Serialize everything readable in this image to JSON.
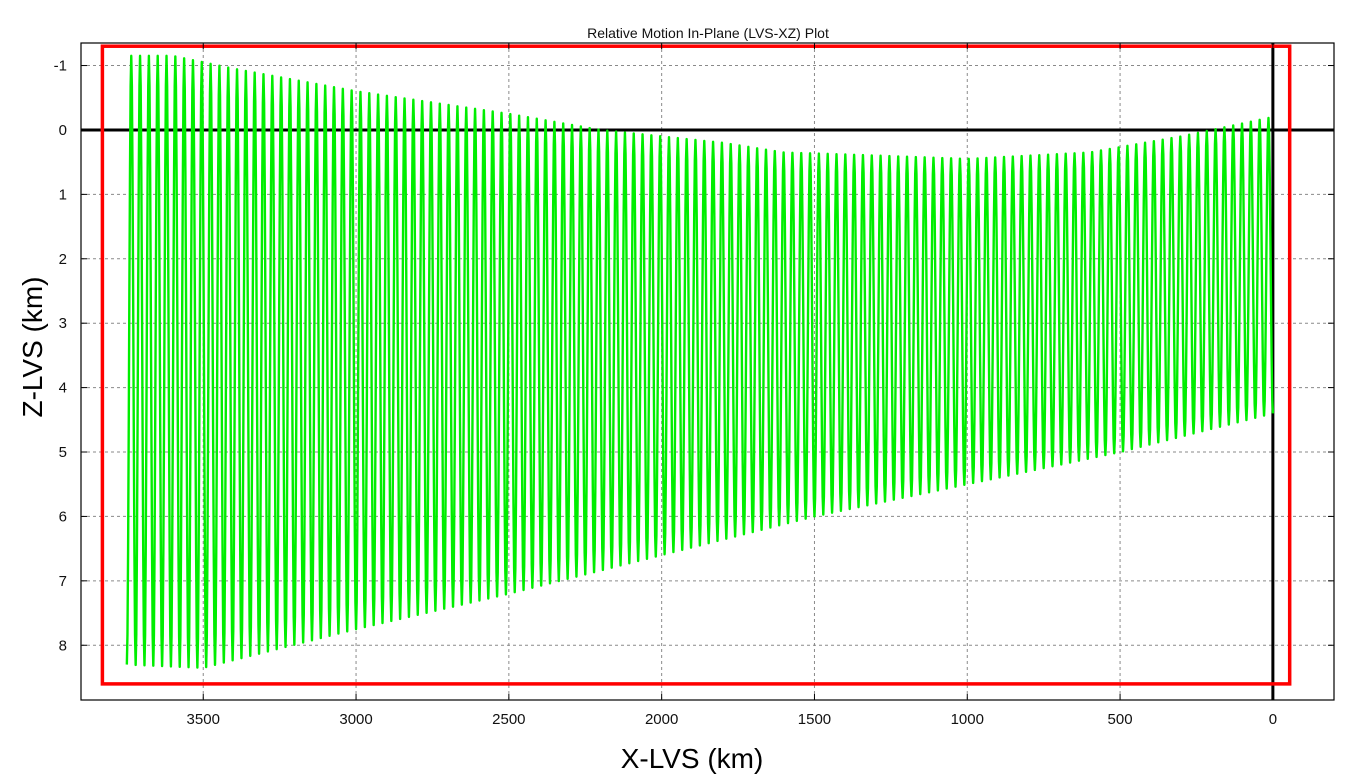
{
  "chart_data": {
    "type": "line",
    "title": "Relative Motion In-Plane (LVS-XZ) Plot",
    "xlabel": "X-LVS (km)",
    "ylabel": "Z-LVS (km)",
    "xlim": [
      3900,
      -200
    ],
    "ylim": [
      -1.35,
      8.85
    ],
    "x_reversed": true,
    "y_reversed": true,
    "grid": true,
    "xticks": [
      3500,
      3000,
      2500,
      2000,
      1500,
      1000,
      500,
      0
    ],
    "yticks": [
      -1,
      0,
      1,
      2,
      3,
      4,
      5,
      6,
      7,
      8
    ],
    "reference_lines": [
      {
        "axis": "y",
        "value": 0,
        "color": "#000000"
      },
      {
        "axis": "x",
        "value": 0,
        "color": "#000000"
      }
    ],
    "highlight_box": {
      "x": [
        3830,
        -55
      ],
      "z": [
        -1.3,
        8.6
      ],
      "color": "#ff0000"
    },
    "series": [
      {
        "color": "#00ee00",
        "oscillation_count": 130,
        "x_start": 3750,
        "x_end": 0,
        "upper_envelope": {
          "x": [
            3750,
            3600,
            3400,
            3000,
            2500,
            2200,
            2000,
            1800,
            1600,
            1400,
            1000,
            600,
            300,
            100,
            0
          ],
          "z": [
            -1.15,
            -1.15,
            -0.95,
            -0.6,
            -0.25,
            0.0,
            0.1,
            0.2,
            0.35,
            0.38,
            0.45,
            0.35,
            0.1,
            -0.1,
            -0.2
          ]
        },
        "lower_envelope": {
          "x": [
            3750,
            3500,
            3000,
            2500,
            2000,
            1500,
            1000,
            500,
            0
          ],
          "z": [
            8.3,
            8.35,
            7.75,
            7.2,
            6.6,
            6.0,
            5.5,
            5.0,
            4.4
          ]
        }
      }
    ]
  }
}
